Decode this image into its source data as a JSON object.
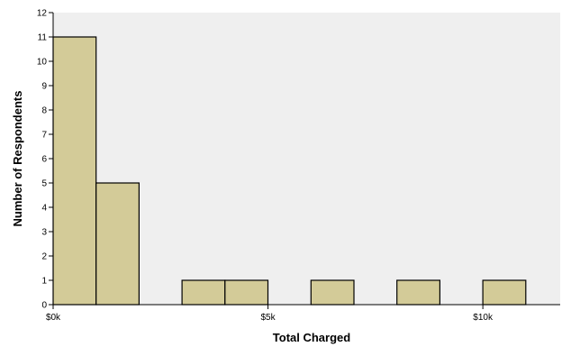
{
  "chart_data": {
    "type": "bar",
    "subtype": "histogram",
    "xlabel": "Total Charged",
    "ylabel": "Number of Respondents",
    "xlim": [
      0,
      11800
    ],
    "ylim": [
      0,
      12
    ],
    "x_ticks": [
      {
        "value": 0,
        "label": "$0k"
      },
      {
        "value": 5000,
        "label": "$5k"
      },
      {
        "value": 10000,
        "label": "$10k"
      }
    ],
    "y_ticks": [
      0,
      1,
      2,
      3,
      4,
      5,
      6,
      7,
      8,
      9,
      10,
      11,
      12
    ],
    "bins": [
      {
        "x0": 0,
        "x1": 1000,
        "count": 11
      },
      {
        "x0": 1000,
        "x1": 2000,
        "count": 5
      },
      {
        "x0": 3000,
        "x1": 4000,
        "count": 1
      },
      {
        "x0": 4000,
        "x1": 5000,
        "count": 1
      },
      {
        "x0": 6000,
        "x1": 7000,
        "count": 1
      },
      {
        "x0": 8000,
        "x1": 9000,
        "count": 1
      },
      {
        "x0": 10000,
        "x1": 11000,
        "count": 1
      }
    ],
    "bar_color": "#d3cb98",
    "plot_background": "#efefef",
    "grid": false
  }
}
